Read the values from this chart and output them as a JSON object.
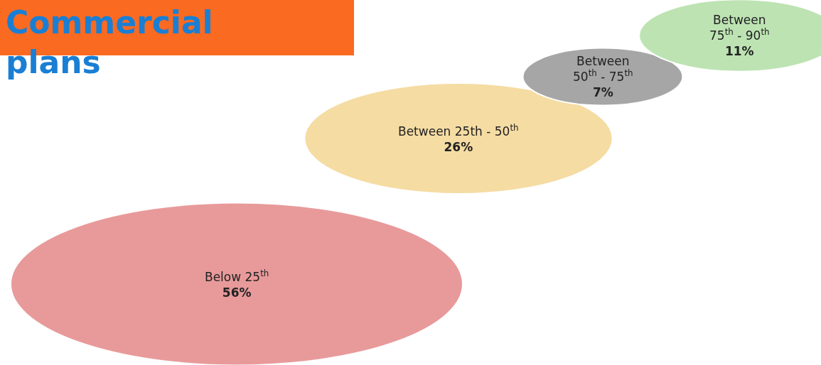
{
  "chart_data": {
    "type": "other",
    "title": "Commercial plans",
    "categories": [
      "Below 25$^{th}$",
      "Between 25th - 50$^{th}$",
      "Between 50$^{th}$ - 75$^{th}$",
      "Between 75$^{th}$ - 90$^{th}$"
    ],
    "values": [
      56,
      26,
      7,
      11
    ],
    "value_labels": [
      "56%",
      "26%",
      "7%",
      "11%"
    ],
    "colors": [
      "#e89a9a",
      "#f5dca3",
      "#a6a6a6",
      "#bde3b3"
    ]
  }
}
